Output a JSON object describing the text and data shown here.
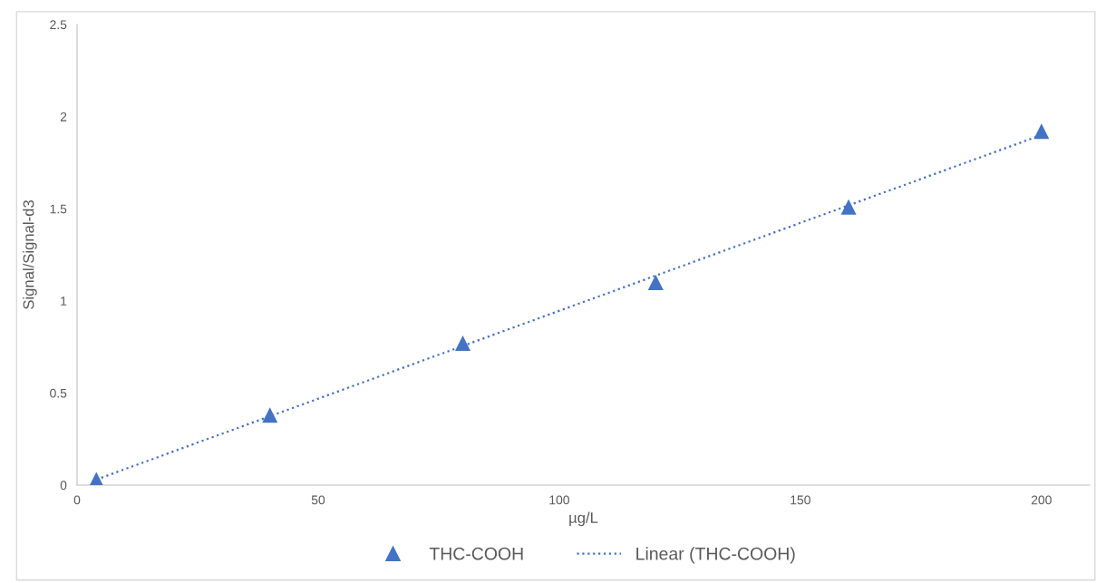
{
  "chart_data": {
    "type": "scatter",
    "xlabel": "µg/L",
    "ylabel": "Signal/Signal-d3",
    "xlim": [
      0,
      210
    ],
    "xticks": [
      0,
      50,
      100,
      150,
      200
    ],
    "ylim": [
      0,
      2.5
    ],
    "yticks": [
      0,
      0.5,
      1,
      1.5,
      2,
      2.5
    ],
    "grid": false,
    "legend": "bottom",
    "series": [
      {
        "name": "THC-COOH",
        "color": "#4472c4",
        "marker": "triangle",
        "x": [
          4,
          40,
          80,
          120,
          160,
          200
        ],
        "values": [
          0.03,
          0.38,
          0.77,
          1.1,
          1.51,
          1.92
        ]
      },
      {
        "name": "Linear (THC-COOH)",
        "type": "line",
        "color": "#4472c4",
        "marker": "none",
        "line_style": "dotted",
        "x": [
          4,
          200
        ],
        "values": [
          0.03,
          1.9
        ]
      }
    ]
  }
}
